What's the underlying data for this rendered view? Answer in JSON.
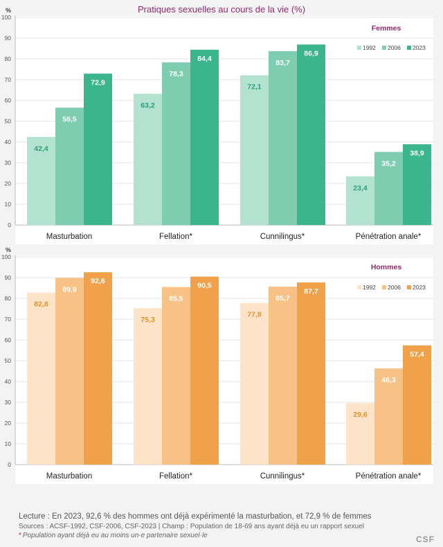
{
  "title": "Pratiques sexuelles au cours de la vie (%)",
  "colors": {
    "femmes": [
      "#b4e2d0",
      "#7fcdb1",
      "#3bb58b"
    ],
    "hommes": [
      "#fde4c8",
      "#f8c286",
      "#f0a149"
    ],
    "femmes_label": "#2aa07a",
    "hommes_label": "#e0922f",
    "femmes_label_light": "#3bb58b",
    "hommes_label_light": "#e6a656",
    "panel_title": "#8e2a6c"
  },
  "chart_data": [
    {
      "type": "bar",
      "panel_title": "Femmes",
      "ylabel": "%",
      "ylim": [
        0,
        100
      ],
      "yticks": [
        0,
        10,
        20,
        30,
        40,
        50,
        60,
        70,
        80,
        90,
        100
      ],
      "categories": [
        "Masturbation",
        "Fellation*",
        "Cunnilingus*",
        "Pénétration anale*"
      ],
      "series": [
        {
          "name": "1992",
          "values": [
            42.4,
            63.2,
            72.1,
            23.4
          ],
          "labels": [
            "42,4",
            "63,2",
            "72,1",
            "23,4"
          ]
        },
        {
          "name": "2006",
          "values": [
            56.5,
            78.3,
            83.7,
            35.2
          ],
          "labels": [
            "56,5",
            "78,3",
            "83,7",
            "35,2"
          ]
        },
        {
          "name": "2023",
          "values": [
            72.9,
            84.4,
            86.9,
            38.9
          ],
          "labels": [
            "72,9",
            "84,4",
            "86,9",
            "38,9"
          ]
        }
      ],
      "legend_position": "top-right"
    },
    {
      "type": "bar",
      "panel_title": "Hommes",
      "ylabel": "%",
      "ylim": [
        0,
        100
      ],
      "yticks": [
        0,
        10,
        20,
        30,
        40,
        50,
        60,
        70,
        80,
        90,
        100
      ],
      "categories": [
        "Masturbation",
        "Fellation*",
        "Cunnilingus*",
        "Pénétration anale*"
      ],
      "series": [
        {
          "name": "1992",
          "values": [
            82.8,
            75.3,
            77.8,
            29.6
          ],
          "labels": [
            "82,8",
            "75,3",
            "77,8",
            "29,6"
          ]
        },
        {
          "name": "2006",
          "values": [
            89.9,
            85.5,
            85.7,
            46.3
          ],
          "labels": [
            "89,9",
            "85,5",
            "85,7",
            "46,3"
          ]
        },
        {
          "name": "2023",
          "values": [
            92.6,
            90.5,
            87.7,
            57.4
          ],
          "labels": [
            "92,6",
            "90,5",
            "87,7",
            "57,4"
          ]
        }
      ],
      "legend_position": "top-right"
    }
  ],
  "footer": {
    "lecture": "Lecture : En 2023, 92,6 % des hommes ont déjà expérimenté la masturbation, et 72,9 % de femmes",
    "sources": "Sources : ACSF-1992, CSF-2006, CSF-2023 | Champ : Population de 18-69 ans ayant déjà eu un rapport sexuel",
    "note_star": "*",
    "note": "Population ayant déjà eu au moins un·e partenaire sexuel·le",
    "brand": "CSF"
  }
}
